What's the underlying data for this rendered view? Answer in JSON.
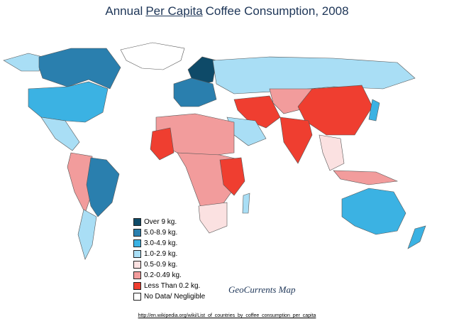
{
  "title": [
    "Annual",
    "Per Capita",
    "Coffee Consumption, 2008"
  ],
  "legend": [
    {
      "label": "Over 9 kg.",
      "color": "#0e4a68"
    },
    {
      "label": "5.0-8.9 kg.",
      "color": "#2a7fae"
    },
    {
      "label": "3.0-4.9 kg.",
      "color": "#3bb2e3"
    },
    {
      "label": "1.0-2.9 kg.",
      "color": "#a9def5"
    },
    {
      "label": "0.5-0.9 kg.",
      "color": "#fbe1e1"
    },
    {
      "label": "0.2-0.49 kg.",
      "color": "#f29c9c"
    },
    {
      "label": "Less Than 0.2 kg.",
      "color": "#ef3e30"
    },
    {
      "label": "No Data/ Negligible",
      "color": "#ffffff"
    }
  ],
  "credit": "GeoCurrents Map",
  "source": "http://en.wikipedia.org/wiki/List_of_countries_by_coffee_consumption_per_capita"
}
